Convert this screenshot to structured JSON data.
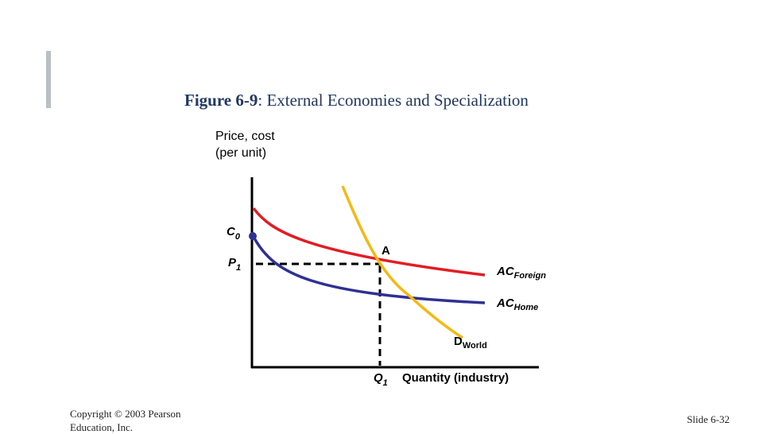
{
  "slide": {
    "title_label": "Figure 6-9",
    "title_rest": ": External Economies and Specialization",
    "copyright": "Copyright © 2003 Pearson Education, Inc.",
    "slide_number": "Slide 6-32"
  },
  "diagram": {
    "y_axis_label_line1": "Price, cost",
    "y_axis_label_line2": "(per unit)",
    "x_axis_label": "Quantity (industry)",
    "c0_label": "C",
    "c0_sub": "0",
    "p1_label": "P",
    "p1_sub": "1",
    "q1_label": "Q",
    "q1_sub": "1",
    "point_a_label": "A",
    "ac_foreign_main": "AC",
    "ac_foreign_sub": "Foreign",
    "ac_home_main": "AC",
    "ac_home_sub": "Home",
    "d_world_main": "D",
    "d_world_sub": "World"
  },
  "colors": {
    "title": "#1f3864",
    "ac_foreign": "#e31b23",
    "ac_home": "#2e3192",
    "d_world": "#f5b914",
    "axis": "#000000"
  }
}
